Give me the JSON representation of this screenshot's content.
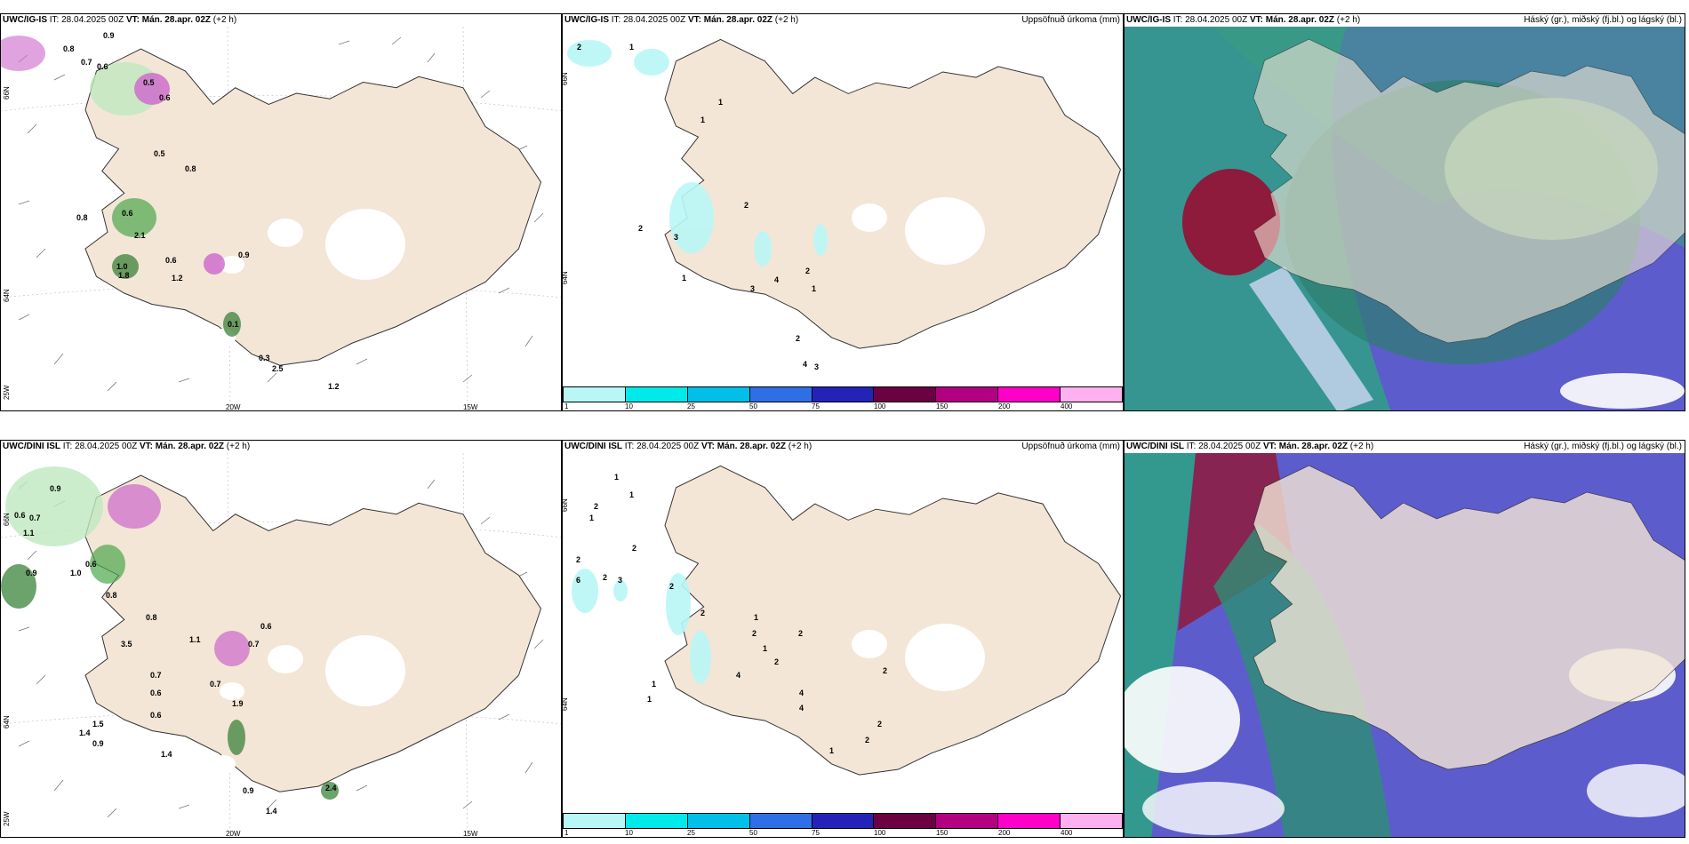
{
  "rows": [
    {
      "model": "UWC/IG-IS",
      "it_label": "IT:",
      "it_value": "28.04.2025 00Z",
      "vt_label": "VT:",
      "vt_value": "Mán. 28.apr. 02Z",
      "lead": "(+2 h)",
      "precip_title": "Uppsöfnuð úrkoma (mm)",
      "cloud_title": "Háský (gr.), miðský (fj.bl.) og lágský (bl.)",
      "wind_labels": [
        "0.8",
        "0.9",
        "0.7",
        "0.6",
        "0.5",
        "0.6",
        "0.5",
        "0.8",
        "0.8",
        "0.6",
        "2.1",
        "0.6",
        "1.2",
        "0.9",
        "1.0",
        "0.1",
        "0.3",
        "2.5",
        "1.2",
        "1.8"
      ],
      "precip_labels": [
        "2",
        "1",
        "1",
        "2",
        "2",
        "3",
        "1",
        "3",
        "4",
        "2",
        "1",
        "2",
        "4",
        "3",
        "1"
      ],
      "axis_left": [
        "66N",
        "64N",
        "25W"
      ],
      "axis_bottom": [
        "20W",
        "15W"
      ],
      "axis_mid": [
        "66N",
        "64N"
      ]
    },
    {
      "model": "UWC/DINI ISL",
      "it_label": "IT:",
      "it_value": "28.04.2025 00Z",
      "vt_label": "VT:",
      "vt_value": "Mán. 28.apr. 02Z",
      "lead": "(+2 h)",
      "precip_title": "Uppsöfnuð úrkoma (mm)",
      "cloud_title": "Háský (gr.), miðský (fj.bl.) og lágský (bl.)",
      "wind_labels": [
        "0.9",
        "0.6",
        "0.7",
        "1.1",
        "0.6",
        "0.9",
        "1.0",
        "0.8",
        "0.6",
        "0.8",
        "3.5",
        "0.7",
        "1.1",
        "0.7",
        "0.6",
        "0.7",
        "0.6",
        "1.9",
        "1.5",
        "0.9",
        "1.4",
        "1.4",
        "2.4",
        "1.4",
        "0.9"
      ],
      "precip_labels": [
        "1",
        "1",
        "2",
        "1",
        "2",
        "6",
        "2",
        "3",
        "2",
        "2",
        "2",
        "1",
        "2",
        "2",
        "1",
        "4",
        "2",
        "4",
        "4",
        "2",
        "2",
        "1",
        "1",
        "1",
        "2"
      ],
      "axis_left": [
        "66N",
        "64N",
        "25W"
      ],
      "axis_bottom": [
        "20W",
        "15W"
      ],
      "axis_mid": [
        "66N",
        "64N"
      ]
    }
  ],
  "colorbar": {
    "ticks": [
      "1",
      "10",
      "25",
      "50",
      "75",
      "100",
      "150",
      "200",
      "400"
    ],
    "colors": [
      "#b9f7f7",
      "#00eaea",
      "#00bfe8",
      "#2f6fe6",
      "#2323b8",
      "#6b0043",
      "#b30080",
      "#ff00c8",
      "#ffb0f0"
    ]
  },
  "colors": {
    "land": "#f3e6d6",
    "sea": "#ffffff",
    "cloud_bg": "#5d5ccc",
    "green": "#2fae6a",
    "dark_red": "#8e1a3c",
    "dark_green": "#2c6a63"
  }
}
